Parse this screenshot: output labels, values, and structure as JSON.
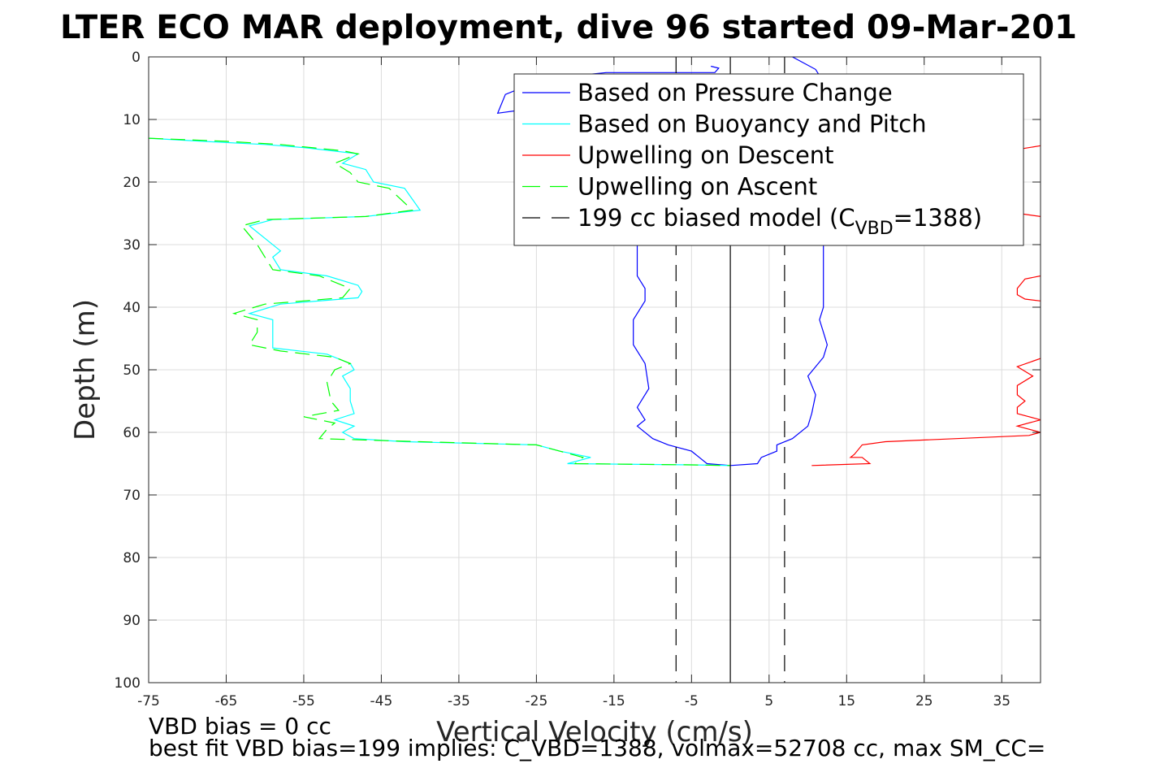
{
  "chart_data": {
    "type": "line",
    "title": "LTER ECO MAR deployment, dive 96 started 09-Mar-201",
    "xlabel": "Vertical Velocity (cm/s)",
    "ylabel": "Depth (m)",
    "xlim": [
      -75,
      40
    ],
    "ylim": [
      0,
      100
    ],
    "y_reversed": true,
    "grid": true,
    "xticks": [
      "-75",
      "-65",
      "-55",
      "-45",
      "-35",
      "-25",
      "-15",
      "-5",
      "5",
      "15",
      "25",
      "35"
    ],
    "yticks": [
      "0",
      "10",
      "20",
      "30",
      "40",
      "50",
      "60",
      "70",
      "80",
      "90",
      "100"
    ],
    "legend_position": "top-right",
    "footnotes": [
      "VBD bias = 0 cc",
      "best fit VBD bias=199 implies: C_VBD=1388, volmax=52708 cc, max SM_CC="
    ],
    "series": [
      {
        "name": "Based on Pressure Change",
        "color": "#0000ff",
        "dash": "solid",
        "points": [
          [
            -2.5,
            1.5
          ],
          [
            -1.5,
            1.8
          ],
          [
            -2,
            2.5
          ],
          [
            -7.5,
            2.5
          ],
          [
            -16,
            2.5
          ],
          [
            -24,
            3.5
          ],
          [
            -29,
            6
          ],
          [
            -30,
            9
          ],
          [
            -27,
            8.5
          ],
          [
            -24,
            7.5
          ],
          [
            -20,
            9.5
          ],
          [
            -15,
            11
          ],
          [
            -12,
            13
          ],
          [
            -11,
            16
          ],
          [
            -11.5,
            20
          ],
          [
            -12,
            24
          ],
          [
            -12,
            28
          ],
          [
            -12,
            31
          ],
          [
            -12,
            33
          ],
          [
            -12,
            35
          ],
          [
            -11,
            37
          ],
          [
            -11,
            39
          ],
          [
            -12.5,
            42
          ],
          [
            -12.5,
            46
          ],
          [
            -11,
            49
          ],
          [
            -10.5,
            53
          ],
          [
            -12,
            56
          ],
          [
            -11,
            58
          ],
          [
            -12,
            59
          ],
          [
            -10,
            61
          ],
          [
            -8,
            62
          ],
          [
            -5,
            63
          ],
          [
            -4,
            64
          ],
          [
            -3,
            65
          ],
          [
            0,
            65.3
          ]
        ]
      },
      {
        "name": "Based on Pressure Change",
        "color": "#0000ff",
        "dash": "solid",
        "points": [
          [
            8,
            0
          ],
          [
            11,
            2
          ],
          [
            12,
            4
          ],
          [
            12.5,
            8
          ],
          [
            12,
            12
          ],
          [
            12,
            16
          ],
          [
            12,
            20
          ],
          [
            12,
            25
          ],
          [
            12,
            30
          ],
          [
            12,
            34
          ],
          [
            12,
            37
          ],
          [
            12,
            40
          ],
          [
            11.5,
            42
          ],
          [
            12,
            44
          ],
          [
            12.5,
            46
          ],
          [
            12,
            48
          ],
          [
            10,
            51
          ],
          [
            11,
            54
          ],
          [
            10.5,
            57
          ],
          [
            10,
            59
          ],
          [
            8,
            61
          ],
          [
            6,
            62
          ],
          [
            6,
            63
          ],
          [
            4,
            64
          ],
          [
            3.5,
            65
          ],
          [
            0,
            65.3
          ]
        ]
      },
      {
        "name": "Based on Buoyancy and Pitch",
        "color": "#00ffff",
        "dash": "solid",
        "points": [
          [
            -75,
            13
          ],
          [
            -68,
            13.5
          ],
          [
            -60,
            14
          ],
          [
            -55,
            14.5
          ],
          [
            -48,
            15.5
          ],
          [
            -50,
            17
          ],
          [
            -47,
            18
          ],
          [
            -46,
            20
          ],
          [
            -42,
            21
          ],
          [
            -40,
            24.5
          ],
          [
            -47,
            25.5
          ],
          [
            -59,
            26
          ],
          [
            -62,
            27
          ],
          [
            -60,
            29
          ],
          [
            -58,
            31
          ],
          [
            -59,
            32
          ],
          [
            -58,
            34
          ],
          [
            -52,
            35
          ],
          [
            -48,
            36.5
          ],
          [
            -47.5,
            37.5
          ],
          [
            -48,
            38.5
          ],
          [
            -58,
            39.5
          ],
          [
            -62,
            41
          ],
          [
            -59,
            42
          ],
          [
            -59,
            44
          ],
          [
            -59,
            46.5
          ],
          [
            -52,
            47.5
          ],
          [
            -49,
            49
          ],
          [
            -48.5,
            50
          ],
          [
            -50,
            51
          ],
          [
            -49,
            53
          ],
          [
            -49,
            55
          ],
          [
            -48.5,
            57
          ],
          [
            -51,
            58
          ],
          [
            -48.5,
            59
          ],
          [
            -50,
            60
          ],
          [
            -48.5,
            61
          ],
          [
            -42,
            61.5
          ],
          [
            -25,
            62
          ],
          [
            -22,
            63
          ],
          [
            -18,
            64
          ],
          [
            -21,
            65
          ],
          [
            -5,
            65.2
          ],
          [
            0,
            65.3
          ]
        ]
      },
      {
        "name": "Upwelling on Descent",
        "color": "#ff0000",
        "dash": "solid",
        "points": [
          [
            40,
            14.2
          ],
          [
            36,
            15
          ]
        ]
      },
      {
        "name": "Upwelling on Descent",
        "color": "#ff0000",
        "dash": "solid",
        "points": [
          [
            40,
            25.5
          ],
          [
            36,
            24.8
          ]
        ]
      },
      {
        "name": "Upwelling on Descent",
        "color": "#ff0000",
        "dash": "solid",
        "points": [
          [
            40,
            35
          ],
          [
            38,
            35.5
          ],
          [
            37,
            37
          ],
          [
            37,
            38
          ],
          [
            38,
            38.7
          ],
          [
            40,
            39
          ]
        ]
      },
      {
        "name": "Upwelling on Descent",
        "color": "#ff0000",
        "dash": "solid",
        "points": [
          [
            40,
            48.2
          ],
          [
            37,
            49.5
          ],
          [
            39,
            51
          ],
          [
            37,
            52.5
          ],
          [
            37,
            54
          ],
          [
            38,
            55
          ],
          [
            37,
            56
          ],
          [
            37,
            57
          ],
          [
            40,
            58
          ],
          [
            37,
            59
          ],
          [
            40,
            60
          ],
          [
            38.5,
            60.5
          ],
          [
            20,
            61.5
          ],
          [
            17,
            62
          ],
          [
            16,
            63.5
          ],
          [
            15.5,
            64
          ],
          [
            17,
            64
          ],
          [
            18,
            65
          ],
          [
            10.5,
            65.3
          ]
        ]
      },
      {
        "name": "Upwelling on Ascent",
        "color": "#00ff00",
        "dash": "dashed",
        "points": [
          [
            -75,
            13
          ],
          [
            -65,
            13.5
          ],
          [
            -58,
            14
          ],
          [
            -50,
            15
          ],
          [
            -48,
            15.5
          ],
          [
            -51,
            17
          ],
          [
            -49,
            18.5
          ],
          [
            -48,
            20
          ],
          [
            -44,
            21
          ],
          [
            -41,
            24.5
          ],
          [
            -47,
            25.5
          ],
          [
            -60,
            26
          ],
          [
            -63,
            27
          ],
          [
            -61,
            30
          ],
          [
            -60,
            32
          ],
          [
            -59,
            34
          ],
          [
            -53,
            35
          ],
          [
            -49,
            37
          ],
          [
            -50,
            38.5
          ],
          [
            -60,
            39.5
          ],
          [
            -64,
            41
          ],
          [
            -61,
            42
          ],
          [
            -61,
            44
          ],
          [
            -62,
            46
          ],
          [
            -58,
            47
          ],
          [
            -51,
            48
          ],
          [
            -49,
            49
          ],
          [
            -51,
            50
          ],
          [
            -52,
            52
          ],
          [
            -51.5,
            55
          ],
          [
            -50.5,
            56.5
          ],
          [
            -55,
            57.5
          ],
          [
            -51,
            58.5
          ],
          [
            -52,
            59.5
          ],
          [
            -53,
            61
          ],
          [
            -40,
            61.5
          ],
          [
            -25,
            62
          ],
          [
            -22,
            63
          ],
          [
            -19,
            64
          ],
          [
            -20,
            65
          ],
          [
            -5,
            65.2
          ],
          [
            0,
            65.3
          ]
        ]
      },
      {
        "name": "199 cc biased model (C_VBD=1388)",
        "color": "#000000",
        "dash": "longdash",
        "points": [
          [
            -7,
            0
          ],
          [
            -7,
            100
          ]
        ]
      },
      {
        "name": "199 cc biased model (C_VBD=1388)",
        "color": "#000000",
        "dash": "longdash",
        "points": [
          [
            7,
            0
          ],
          [
            7,
            100
          ]
        ]
      },
      {
        "name": "",
        "color": "#000000",
        "dash": "solid",
        "points": [
          [
            0,
            0
          ],
          [
            0,
            100
          ]
        ]
      }
    ],
    "legend": [
      {
        "label": "Based on Pressure Change",
        "color": "#0000ff",
        "dash": "solid"
      },
      {
        "label": "Based on Buoyancy and Pitch",
        "color": "#00ffff",
        "dash": "solid"
      },
      {
        "label": "Upwelling on Descent",
        "color": "#ff0000",
        "dash": "solid"
      },
      {
        "label": "Upwelling on Ascent",
        "color": "#00ff00",
        "dash": "dashed"
      },
      {
        "label": "199 cc biased model (C",
        "label_sub": "VBD",
        "label_after": "=1388)",
        "color": "#000000",
        "dash": "longdash"
      }
    ]
  }
}
